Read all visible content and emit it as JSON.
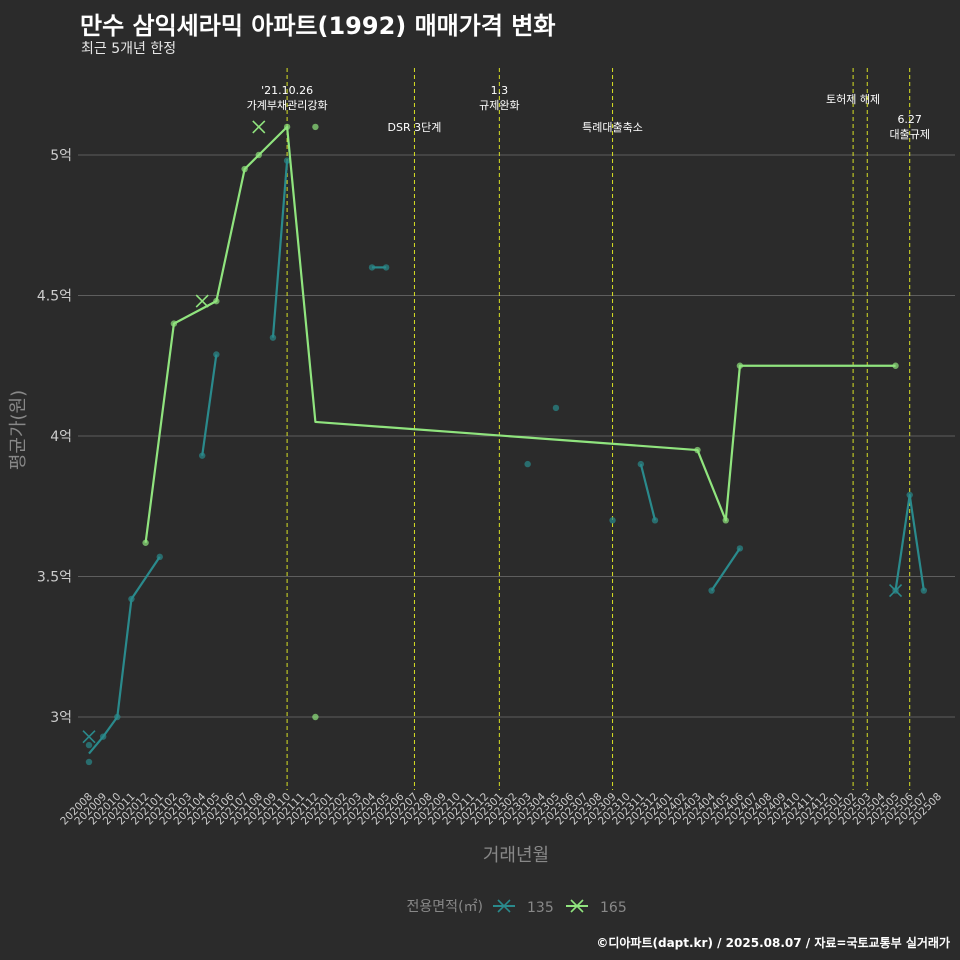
{
  "header": {
    "title": "만수 삼익세라믹 아파트(1992) 매매가격 변화",
    "subtitle": "최근 5개년 한정"
  },
  "caption": "©디아파트(dapt.kr) / 2025.08.07 / 자료=국토교통부 실거래가",
  "colors": {
    "background": "#2b2b2b",
    "grid": "#5e5e5e",
    "series_135": "#2a8a8c",
    "series_165": "#90e47e",
    "event_line": "#d8e024",
    "text": "#ffffff",
    "axis_text": "#cccccc",
    "muted_text": "#888888"
  },
  "chart_data": {
    "type": "line",
    "xlabel": "거래년월",
    "ylabel": "평균가(원)",
    "ylim": [
      2.7,
      5.3
    ],
    "y_ticks": [
      {
        "value": 3.0,
        "label": "3억"
      },
      {
        "value": 3.5,
        "label": "3.5억"
      },
      {
        "value": 4.0,
        "label": "4억"
      },
      {
        "value": 4.5,
        "label": "4.5억"
      },
      {
        "value": 5.0,
        "label": "5억"
      }
    ],
    "x_ticks": [
      "202008",
      "202009",
      "202010",
      "202011",
      "202012",
      "202101",
      "202102",
      "202103",
      "202104",
      "202105",
      "202106",
      "202107",
      "202108",
      "202109",
      "202110",
      "202111",
      "202112",
      "202201",
      "202202",
      "202203",
      "202204",
      "202205",
      "202206",
      "202207",
      "202208",
      "202209",
      "202210",
      "202211",
      "202212",
      "202301",
      "202302",
      "202303",
      "202304",
      "202305",
      "202306",
      "202307",
      "202308",
      "202309",
      "202310",
      "202311",
      "202312",
      "202401",
      "202402",
      "202403",
      "202404",
      "202405",
      "202406",
      "202407",
      "202408",
      "202409",
      "202410",
      "202411",
      "202412",
      "202501",
      "202502",
      "202503",
      "202504",
      "202505",
      "202506",
      "202507",
      "202508"
    ],
    "events": [
      {
        "x": "202110",
        "label": "'21.10.26\n가계부채관리강화",
        "row": 0
      },
      {
        "x": "202207",
        "label": "DSR 3단계",
        "row": 1
      },
      {
        "x": "202301",
        "label": "1.3\n규제완화",
        "row": 0
      },
      {
        "x": "202309",
        "label": "특례대출축소",
        "row": 1
      },
      {
        "x": "202502",
        "label": "토허제 해제",
        "row": 0
      },
      {
        "x": "202503",
        "label": "",
        "row": 0
      },
      {
        "x": "202506",
        "label": "6.27\n대출규제",
        "row": 2
      }
    ],
    "legend": {
      "title": "전용면적(㎡)",
      "position": "bottom"
    },
    "series": [
      {
        "name": "135",
        "line": [
          [
            "202008",
            2.87
          ],
          [
            "202009",
            2.93
          ],
          [
            "202010",
            3.0
          ],
          [
            "202011",
            3.42
          ],
          [
            "202101",
            3.57
          ]
        ],
        "line2": [
          [
            "202104",
            3.93
          ],
          [
            "202105",
            4.29
          ]
        ],
        "line3": [
          [
            "202109",
            4.35
          ],
          [
            "202110",
            4.98
          ]
        ],
        "line4": [
          [
            "202204",
            4.6
          ],
          [
            "202205",
            4.6
          ]
        ],
        "line5": [
          [
            "202311",
            3.9
          ],
          [
            "202312",
            3.7
          ]
        ],
        "line6": [
          [
            "202404",
            3.45
          ],
          [
            "202406",
            3.6
          ]
        ],
        "line7": [
          [
            "202505",
            3.45
          ],
          [
            "202506",
            3.79
          ],
          [
            "202507",
            3.45
          ]
        ],
        "points": [
          [
            "202008",
            2.84
          ],
          [
            "202008",
            2.9
          ],
          [
            "202009",
            2.93
          ],
          [
            "202010",
            3.0
          ],
          [
            "202011",
            3.42
          ],
          [
            "202101",
            3.57
          ],
          [
            "202104",
            3.93
          ],
          [
            "202105",
            4.29
          ],
          [
            "202109",
            4.35
          ],
          [
            "202110",
            4.98
          ],
          [
            "202204",
            4.6
          ],
          [
            "202205",
            4.6
          ],
          [
            "202303",
            3.9
          ],
          [
            "202305",
            4.1
          ],
          [
            "202309",
            3.7
          ],
          [
            "202311",
            3.9
          ],
          [
            "202312",
            3.7
          ],
          [
            "202404",
            3.45
          ],
          [
            "202406",
            3.6
          ],
          [
            "202505",
            3.45
          ],
          [
            "202506",
            3.79
          ],
          [
            "202507",
            3.45
          ]
        ],
        "crosses": [
          [
            "202008",
            2.93
          ],
          [
            "202505",
            3.45
          ]
        ]
      },
      {
        "name": "165",
        "line": [
          [
            "202012",
            3.62
          ],
          [
            "202102",
            4.4
          ],
          [
            "202105",
            4.48
          ],
          [
            "202107",
            4.95
          ],
          [
            "202108",
            5.0
          ],
          [
            "202110",
            5.1
          ],
          [
            "202112",
            4.05
          ],
          [
            "202403",
            3.95
          ],
          [
            "202405",
            3.7
          ],
          [
            "202406",
            4.25
          ],
          [
            "202505",
            4.25
          ]
        ],
        "points": [
          [
            "202012",
            3.62
          ],
          [
            "202102",
            4.4
          ],
          [
            "202105",
            4.48
          ],
          [
            "202107",
            4.95
          ],
          [
            "202108",
            5.0
          ],
          [
            "202110",
            5.1
          ],
          [
            "202112",
            5.1
          ],
          [
            "202112",
            3.0
          ],
          [
            "202403",
            3.95
          ],
          [
            "202405",
            3.7
          ],
          [
            "202406",
            4.25
          ],
          [
            "202505",
            4.25
          ]
        ],
        "crosses": [
          [
            "202104",
            4.48
          ],
          [
            "202108",
            5.1
          ]
        ]
      }
    ]
  }
}
